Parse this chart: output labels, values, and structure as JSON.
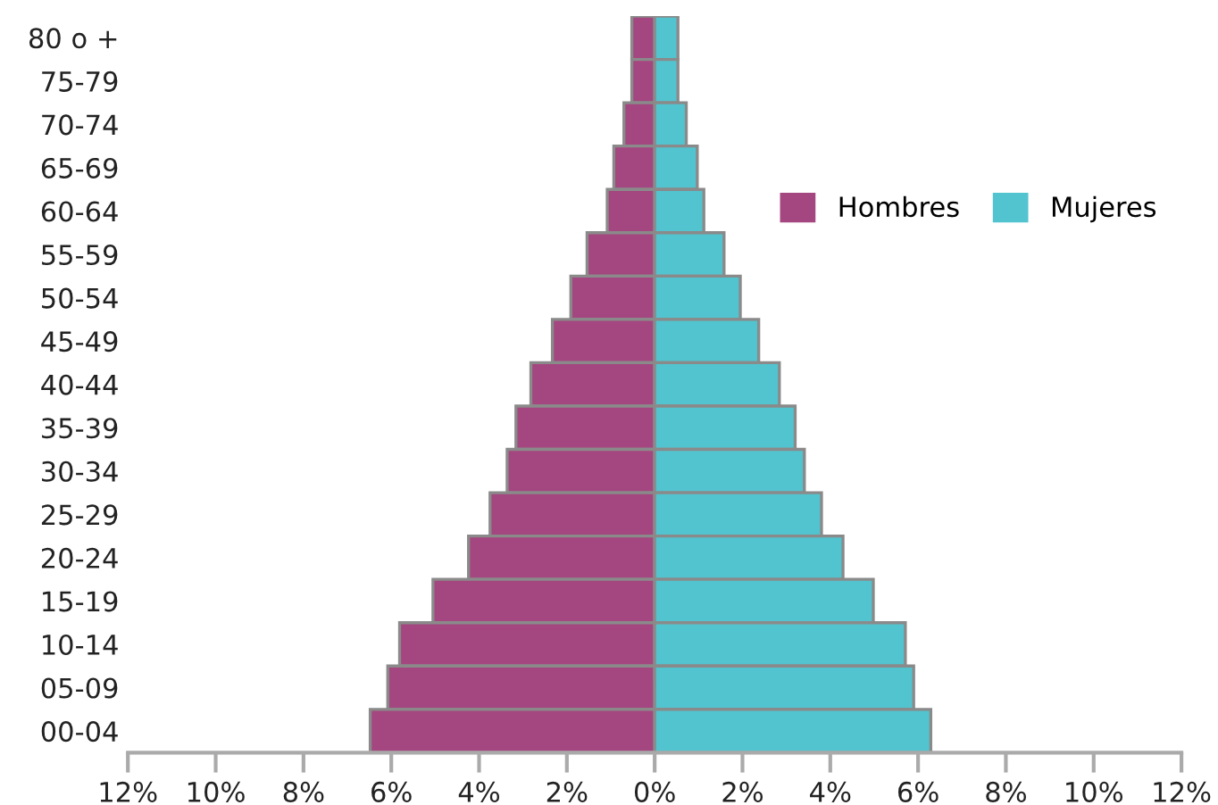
{
  "chart_data": {
    "type": "bar",
    "orientation": "horizontal",
    "stacked": true,
    "categories": [
      "80 o +",
      "75-79",
      "70-74",
      "65-69",
      "60-64",
      "55-59",
      "50-54",
      "45-49",
      "40-44",
      "35-39",
      "30-34",
      "25-29",
      "20-24",
      "15-19",
      "10-14",
      "05-09",
      "00-04"
    ],
    "series": [
      {
        "name": "Hombres",
        "color": "#a4467f",
        "values": [
          -0.52,
          -0.52,
          -0.7,
          -0.93,
          -1.08,
          -1.54,
          -1.91,
          -2.33,
          -2.82,
          -3.16,
          -3.36,
          -3.75,
          -4.24,
          -5.05,
          -5.81,
          -6.08,
          -6.48
        ]
      },
      {
        "name": "Mujeres",
        "color": "#52c4cf",
        "values": [
          0.53,
          0.53,
          0.72,
          0.97,
          1.12,
          1.58,
          1.95,
          2.37,
          2.84,
          3.2,
          3.41,
          3.8,
          4.29,
          4.98,
          5.71,
          5.9,
          6.29
        ]
      }
    ],
    "xlim": [
      -12,
      12
    ],
    "xticks": [
      {
        "value": -12,
        "label": "12%"
      },
      {
        "value": -10,
        "label": "10%"
      },
      {
        "value": -8,
        "label": "8%"
      },
      {
        "value": -6,
        "label": "6%"
      },
      {
        "value": -4,
        "label": "4%"
      },
      {
        "value": -2,
        "label": "2%"
      },
      {
        "value": 0,
        "label": "0%"
      },
      {
        "value": 2,
        "label": "2%"
      },
      {
        "value": 4,
        "label": "4%"
      },
      {
        "value": 6,
        "label": "6%"
      },
      {
        "value": 8,
        "label": "8%"
      },
      {
        "value": 10,
        "label": "10%"
      },
      {
        "value": 12,
        "label": "12%"
      }
    ],
    "grid": false,
    "legend": "right"
  }
}
